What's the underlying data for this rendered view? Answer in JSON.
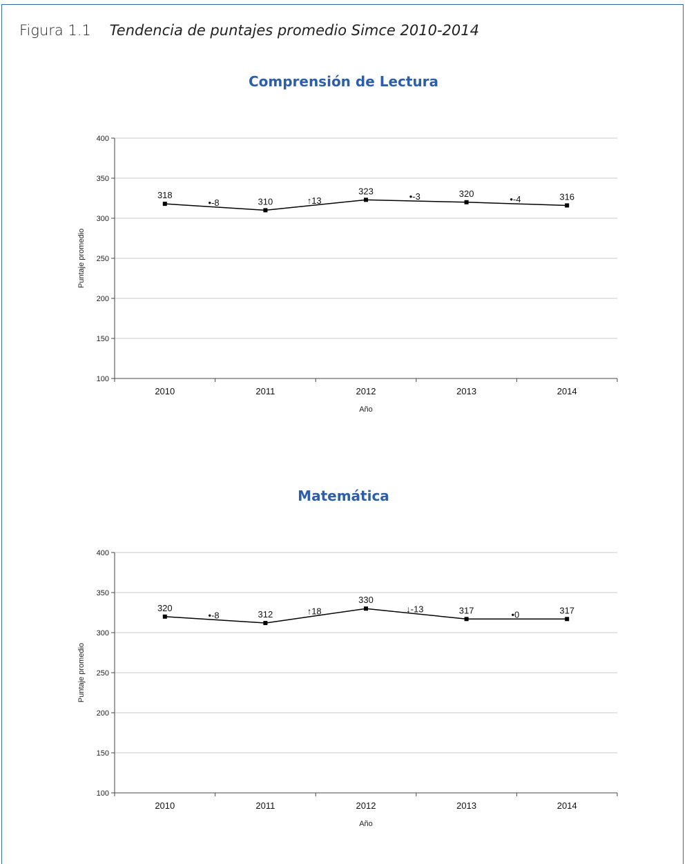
{
  "figure": {
    "number": "Figura 1.1",
    "title": "Tendencia de puntajes promedio Simce 2010-2014"
  },
  "colors": {
    "border": "#2e6da4",
    "title": "#2d5fa8",
    "line": "#000000",
    "grid": "#c8c8c8"
  },
  "chart_data": [
    {
      "type": "line",
      "title": "Comprensión de Lectura",
      "xlabel": "Año",
      "ylabel": "Puntaje promedio",
      "ylim": [
        100,
        400
      ],
      "yticks": [
        100,
        150,
        200,
        250,
        300,
        350,
        400
      ],
      "categories": [
        "2010",
        "2011",
        "2012",
        "2013",
        "2014"
      ],
      "values": [
        318,
        310,
        323,
        320,
        316
      ],
      "value_labels": [
        "318",
        "310",
        "323",
        "320",
        "316"
      ],
      "changes": [
        {
          "symbol": "•",
          "text": "-8",
          "value": -8
        },
        {
          "symbol": "↑",
          "text": "13",
          "value": 13
        },
        {
          "symbol": "•",
          "text": "-3",
          "value": -3
        },
        {
          "symbol": "•",
          "text": "-4",
          "value": -4
        }
      ],
      "grid": true
    },
    {
      "type": "line",
      "title": "Matemática",
      "xlabel": "Año",
      "ylabel": "Puntaje promedio",
      "ylim": [
        100,
        400
      ],
      "yticks": [
        100,
        150,
        200,
        250,
        300,
        350,
        400
      ],
      "categories": [
        "2010",
        "2011",
        "2012",
        "2013",
        "2014"
      ],
      "values": [
        320,
        312,
        330,
        317,
        317
      ],
      "value_labels": [
        "320",
        "312",
        "330",
        "317",
        "317"
      ],
      "changes": [
        {
          "symbol": "•",
          "text": "-8",
          "value": -8
        },
        {
          "symbol": "↑",
          "text": "18",
          "value": 18
        },
        {
          "symbol": "↓",
          "text": "-13",
          "value": -13
        },
        {
          "symbol": "•",
          "text": "0",
          "value": 0
        }
      ],
      "grid": true
    }
  ]
}
